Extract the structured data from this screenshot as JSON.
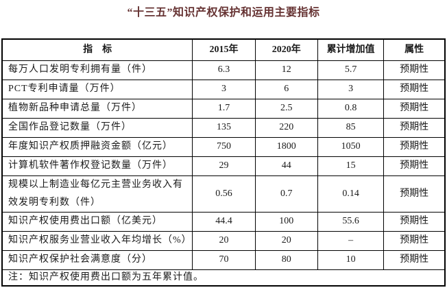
{
  "title": "“十三五”知识产权保护和运用主要指标",
  "colors": {
    "title_text": "#663333",
    "body_text": "#1a1a1a",
    "border": "#000000",
    "background": "#ffffff"
  },
  "table": {
    "headers": [
      "指　标",
      "2015年",
      "2020年",
      "累计增加值",
      "属性"
    ],
    "rows": [
      [
        "每万人口发明专利拥有量（件）",
        "6.3",
        "12",
        "5.7",
        "预期性"
      ],
      [
        "PCT专利申请量（万件）",
        "3",
        "6",
        "3",
        "预期性"
      ],
      [
        "植物新品种申请总量（万件）",
        "1.7",
        "2.5",
        "0.8",
        "预期性"
      ],
      [
        "全国作品登记数量（万件）",
        "135",
        "220",
        "85",
        "预期性"
      ],
      [
        "年度知识产权质押融资金额（亿元）",
        "750",
        "1800",
        "1050",
        "预期性"
      ],
      [
        "计算机软件著作权登记数量（万件）",
        "29",
        "44",
        "15",
        "预期性"
      ],
      [
        "规模以上制造业每亿元主营业务收入有效发明专利数（件）",
        "0.56",
        "0.7",
        "0.14",
        "预期性"
      ],
      [
        "知识产权使用费出口额（亿美元）",
        "44.4",
        "100",
        "55.6",
        "预期性"
      ],
      [
        "知识产权服务业营业收入年均增长（%）",
        "20",
        "20",
        "–",
        "预期性"
      ],
      [
        "知识产权保护社会满意度（分）",
        "70",
        "80",
        "10",
        "预期性"
      ]
    ],
    "note": "注：知识产权使用费出口额为五年累计值。"
  },
  "chart_data": {
    "type": "table",
    "title": "“十三五”知识产权保护和运用主要指标",
    "columns": [
      "指标",
      "2015年",
      "2020年",
      "累计增加值",
      "属性"
    ],
    "rows": [
      {
        "indicator": "每万人口发明专利拥有量（件）",
        "y2015": 6.3,
        "y2020": 12,
        "increase": 5.7,
        "attribute": "预期性"
      },
      {
        "indicator": "PCT专利申请量（万件）",
        "y2015": 3,
        "y2020": 6,
        "increase": 3,
        "attribute": "预期性"
      },
      {
        "indicator": "植物新品种申请总量（万件）",
        "y2015": 1.7,
        "y2020": 2.5,
        "increase": 0.8,
        "attribute": "预期性"
      },
      {
        "indicator": "全国作品登记数量（万件）",
        "y2015": 135,
        "y2020": 220,
        "increase": 85,
        "attribute": "预期性"
      },
      {
        "indicator": "年度知识产权质押融资金额（亿元）",
        "y2015": 750,
        "y2020": 1800,
        "increase": 1050,
        "attribute": "预期性"
      },
      {
        "indicator": "计算机软件著作权登记数量（万件）",
        "y2015": 29,
        "y2020": 44,
        "increase": 15,
        "attribute": "预期性"
      },
      {
        "indicator": "规模以上制造业每亿元主营业务收入有效发明专利数（件）",
        "y2015": 0.56,
        "y2020": 0.7,
        "increase": 0.14,
        "attribute": "预期性"
      },
      {
        "indicator": "知识产权使用费出口额（亿美元）",
        "y2015": 44.4,
        "y2020": 100,
        "increase": 55.6,
        "attribute": "预期性"
      },
      {
        "indicator": "知识产权服务业营业收入年均增长（%）",
        "y2015": 20,
        "y2020": 20,
        "increase": null,
        "attribute": "预期性"
      },
      {
        "indicator": "知识产权保护社会满意度（分）",
        "y2015": 70,
        "y2020": 80,
        "increase": 10,
        "attribute": "预期性"
      }
    ],
    "note": "注：知识产权使用费出口额为五年累计值。"
  }
}
